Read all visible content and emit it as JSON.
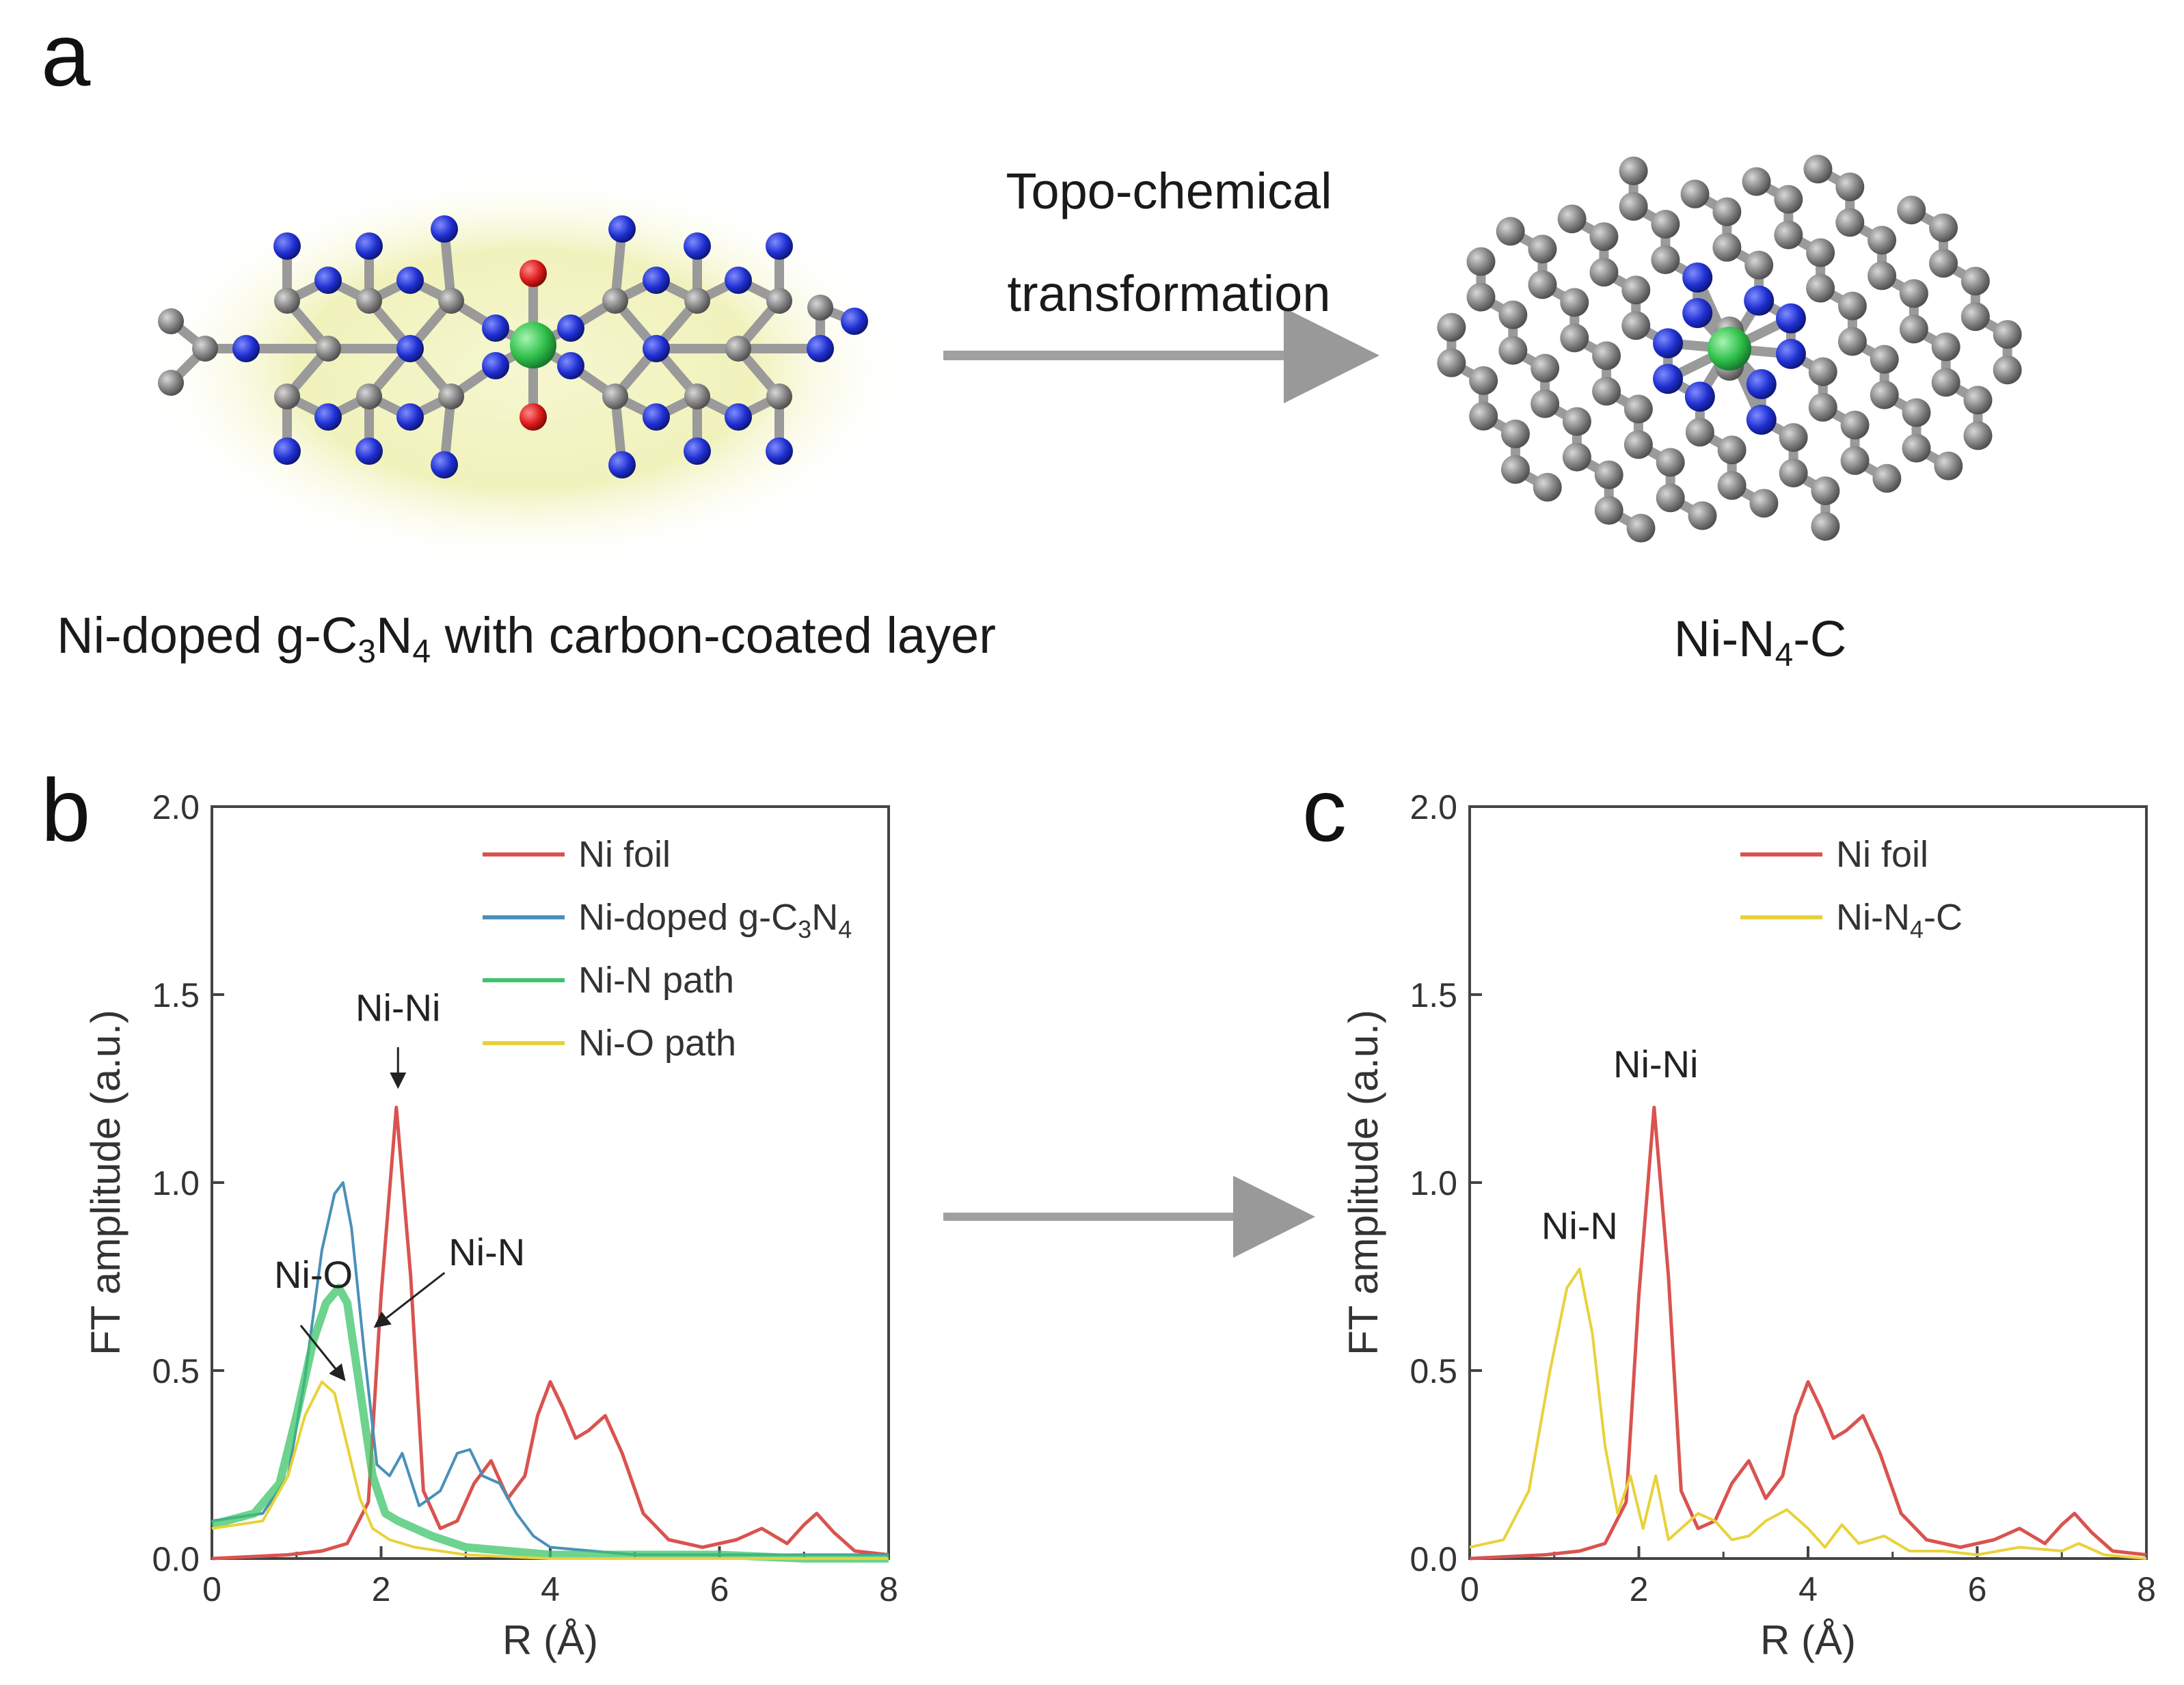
{
  "panel_a": {
    "letter": "a",
    "arrow_text_line1": "Topo-chemical",
    "arrow_text_line2": "transformation",
    "left_caption": {
      "pre": "Ni-doped g-C",
      "s1": "3",
      "mid": "N",
      "s2": "4",
      "post": " with carbon-coated layer"
    },
    "right_caption": {
      "pre": "Ni-N",
      "sub": "4",
      "post": "-C"
    }
  },
  "atom_colors": {
    "carbon": "#7d7d7d",
    "nitrogen": "#1f2fd0",
    "oxygen": "#dd1a1a",
    "nickel": "#2fbf4a",
    "glow": "#eef0b0"
  },
  "chart_data": [
    {
      "panel": "b",
      "type": "line",
      "xlabel": "R (Å)",
      "ylabel": "FT amplitude (a.u.)",
      "xlim": [
        0,
        8
      ],
      "ylim": [
        0,
        2.0
      ],
      "xticks": [
        "0",
        "2",
        "4",
        "6",
        "8"
      ],
      "yticks": [
        "0.0",
        "0.5",
        "1.0",
        "1.5",
        "2.0"
      ],
      "legend_position": "top-right",
      "legend": [
        {
          "label": "Ni foil",
          "color": "#d9534f"
        },
        {
          "label": "Ni-doped g-C",
          "sub1": "3",
          "mid": "N",
          "sub2": "4",
          "color": "#4a90b8"
        },
        {
          "label": "Ni-N path",
          "color": "#3cc46a"
        },
        {
          "label": "Ni-O path",
          "color": "#e8d23a"
        }
      ],
      "annotations": [
        "Ni-Ni",
        "Ni-N",
        "Ni-O"
      ],
      "series": [
        {
          "name": "Ni foil",
          "color": "#d9534f",
          "width": 5,
          "x": [
            0,
            0.9,
            1.3,
            1.6,
            1.85,
            2.0,
            2.18,
            2.35,
            2.5,
            2.7,
            2.9,
            3.1,
            3.3,
            3.5,
            3.7,
            3.85,
            4.0,
            4.15,
            4.3,
            4.45,
            4.65,
            4.85,
            5.1,
            5.4,
            5.8,
            6.2,
            6.5,
            6.8,
            7.0,
            7.15,
            7.35,
            7.6,
            8.0
          ],
          "y": [
            0.0,
            0.01,
            0.02,
            0.04,
            0.15,
            0.7,
            1.2,
            0.75,
            0.18,
            0.08,
            0.1,
            0.2,
            0.26,
            0.16,
            0.22,
            0.38,
            0.47,
            0.4,
            0.32,
            0.34,
            0.38,
            0.28,
            0.12,
            0.05,
            0.03,
            0.05,
            0.08,
            0.04,
            0.09,
            0.12,
            0.07,
            0.02,
            0.01
          ]
        },
        {
          "name": "Ni-doped g-C3N4",
          "color": "#4a90b8",
          "width": 4,
          "x": [
            0,
            0.6,
            0.9,
            1.1,
            1.3,
            1.45,
            1.55,
            1.65,
            1.8,
            1.95,
            2.1,
            2.25,
            2.45,
            2.7,
            2.9,
            3.05,
            3.2,
            3.4,
            3.6,
            3.8,
            4.0,
            4.5,
            5.0,
            6.0,
            7.0,
            8.0
          ],
          "y": [
            0.1,
            0.12,
            0.22,
            0.48,
            0.82,
            0.97,
            1.0,
            0.88,
            0.55,
            0.25,
            0.22,
            0.28,
            0.14,
            0.18,
            0.28,
            0.29,
            0.22,
            0.2,
            0.12,
            0.06,
            0.03,
            0.02,
            0.01,
            0.01,
            0.01,
            0.01
          ]
        },
        {
          "name": "Ni-N path",
          "color": "#3cc46a",
          "width": 12,
          "x": [
            0,
            0.5,
            0.8,
            1.0,
            1.2,
            1.35,
            1.5,
            1.6,
            1.75,
            1.9,
            2.05,
            2.2,
            2.4,
            2.6,
            3.0,
            3.5,
            4.0,
            5.0,
            6.0,
            7.0,
            8.0
          ],
          "y": [
            0.09,
            0.12,
            0.2,
            0.38,
            0.58,
            0.68,
            0.72,
            0.68,
            0.45,
            0.22,
            0.12,
            0.1,
            0.08,
            0.06,
            0.03,
            0.02,
            0.01,
            0.01,
            0.01,
            0.0,
            0.0
          ]
        },
        {
          "name": "Ni-O path",
          "color": "#e8d23a",
          "width": 4,
          "x": [
            0,
            0.6,
            0.9,
            1.1,
            1.3,
            1.45,
            1.6,
            1.75,
            1.9,
            2.1,
            2.4,
            3.0,
            4.0,
            6.0,
            8.0
          ],
          "y": [
            0.08,
            0.1,
            0.22,
            0.38,
            0.47,
            0.44,
            0.3,
            0.16,
            0.08,
            0.05,
            0.03,
            0.01,
            0.0,
            0.0,
            0.0
          ]
        }
      ]
    },
    {
      "panel": "c",
      "type": "line",
      "xlabel": "R (Å)",
      "ylabel": "FT amplitude (a.u.)",
      "xlim": [
        0,
        8
      ],
      "ylim": [
        0,
        2.0
      ],
      "xticks": [
        "0",
        "2",
        "4",
        "6",
        "8"
      ],
      "yticks": [
        "0.0",
        "0.5",
        "1.0",
        "1.5",
        "2.0"
      ],
      "legend_position": "top-right",
      "legend": [
        {
          "label": "Ni foil",
          "color": "#d9534f"
        },
        {
          "label": "Ni-N",
          "sub": "4",
          "post": "-C",
          "color": "#e8d23a"
        }
      ],
      "annotations": [
        "Ni-Ni",
        "Ni-N"
      ],
      "series": [
        {
          "name": "Ni foil",
          "color": "#d9534f",
          "width": 5,
          "x": [
            0,
            0.9,
            1.3,
            1.6,
            1.85,
            2.0,
            2.18,
            2.35,
            2.5,
            2.7,
            2.9,
            3.1,
            3.3,
            3.5,
            3.7,
            3.85,
            4.0,
            4.15,
            4.3,
            4.45,
            4.65,
            4.85,
            5.1,
            5.4,
            5.8,
            6.2,
            6.5,
            6.8,
            7.0,
            7.15,
            7.35,
            7.6,
            8.0
          ],
          "y": [
            0.0,
            0.01,
            0.02,
            0.04,
            0.15,
            0.7,
            1.2,
            0.75,
            0.18,
            0.08,
            0.1,
            0.2,
            0.26,
            0.16,
            0.22,
            0.38,
            0.47,
            0.4,
            0.32,
            0.34,
            0.38,
            0.28,
            0.12,
            0.05,
            0.03,
            0.05,
            0.08,
            0.04,
            0.09,
            0.12,
            0.07,
            0.02,
            0.01
          ]
        },
        {
          "name": "Ni-N4-C",
          "color": "#e8d23a",
          "width": 4,
          "x": [
            0,
            0.4,
            0.7,
            0.95,
            1.15,
            1.3,
            1.45,
            1.6,
            1.75,
            1.9,
            2.05,
            2.2,
            2.35,
            2.5,
            2.7,
            2.9,
            3.1,
            3.3,
            3.5,
            3.75,
            4.0,
            4.2,
            4.4,
            4.6,
            4.9,
            5.2,
            5.6,
            6.0,
            6.5,
            7.0,
            7.2,
            7.5,
            8.0
          ],
          "y": [
            0.03,
            0.05,
            0.18,
            0.5,
            0.72,
            0.77,
            0.6,
            0.3,
            0.12,
            0.22,
            0.08,
            0.22,
            0.05,
            0.08,
            0.12,
            0.1,
            0.05,
            0.06,
            0.1,
            0.13,
            0.08,
            0.03,
            0.09,
            0.04,
            0.06,
            0.02,
            0.02,
            0.01,
            0.03,
            0.02,
            0.04,
            0.01,
            0.0
          ]
        }
      ]
    }
  ]
}
